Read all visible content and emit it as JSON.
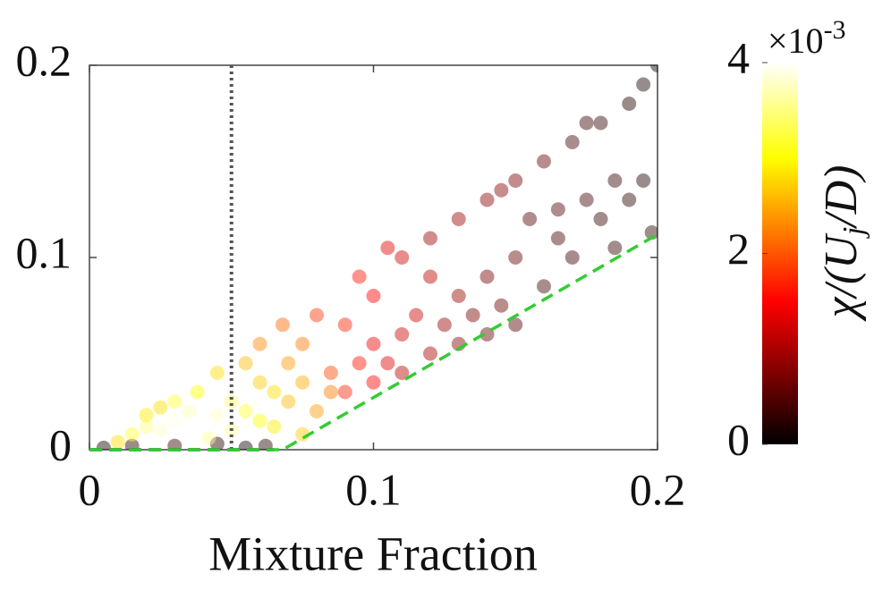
{
  "chart_data": {
    "type": "scatter",
    "xlabel": "Mixture Fraction",
    "xlim": [
      0,
      0.2
    ],
    "xticks": [
      0,
      0.1,
      0.2
    ],
    "ylim": [
      0,
      0.2
    ],
    "yticks": [
      0,
      0.1,
      0.2
    ],
    "colormap": "hot",
    "clim": [
      0,
      4
    ],
    "cticks": [
      0,
      2,
      4
    ],
    "colorbar_multiplier": {
      "base": "×10",
      "exponent": "-3"
    },
    "colorbar_label": {
      "main": "χ/(U",
      "sub": "j",
      "end": "/D)"
    },
    "point_opacity": 0.45,
    "lines": [
      {
        "x": [
          0.05,
          0.05
        ],
        "y": [
          0,
          0.2
        ],
        "color": "#555555",
        "dash": "dotted"
      },
      {
        "x": [
          0,
          0.065
        ],
        "y": [
          0,
          0
        ],
        "color": "#000000",
        "dash": "dashed"
      },
      {
        "x": [
          0,
          0.068,
          0.2
        ],
        "y": [
          0,
          0,
          0.112
        ],
        "color": "#33cc33",
        "dash": "dashed"
      }
    ],
    "series": [
      {
        "x": [
          0.005,
          0.015,
          0.03,
          0.045,
          0.055,
          0.062,
          0.01,
          0.015,
          0.02,
          0.025,
          0.03,
          0.035,
          0.04,
          0.045,
          0.05,
          0.03,
          0.038,
          0.042,
          0.05,
          0.055,
          0.06,
          0.02,
          0.025,
          0.045,
          0.055,
          0.06,
          0.065,
          0.07,
          0.07,
          0.075,
          0.06,
          0.068,
          0.075,
          0.08,
          0.085,
          0.065,
          0.075,
          0.08,
          0.085,
          0.09,
          0.095,
          0.09,
          0.1,
          0.1,
          0.105,
          0.1,
          0.095,
          0.11,
          0.11,
          0.115,
          0.12,
          0.12,
          0.11,
          0.105,
          0.125,
          0.13,
          0.13,
          0.13,
          0.135,
          0.14,
          0.14,
          0.14,
          0.145,
          0.15,
          0.15,
          0.15,
          0.155,
          0.16,
          0.16,
          0.165,
          0.165,
          0.17,
          0.17,
          0.175,
          0.175,
          0.18,
          0.18,
          0.185,
          0.185,
          0.19,
          0.19,
          0.195,
          0.195,
          0.198,
          0.2,
          0.12,
          0.145
        ],
        "y": [
          0.001,
          0.002,
          0.002,
          0.003,
          0.001,
          0.002,
          0.004,
          0.008,
          0.012,
          0.01,
          0.015,
          0.02,
          0.012,
          0.018,
          0.025,
          0.025,
          0.03,
          0.006,
          0.01,
          0.02,
          0.015,
          0.018,
          0.022,
          0.04,
          0.045,
          0.035,
          0.03,
          0.025,
          0.045,
          0.055,
          0.055,
          0.065,
          0.035,
          0.02,
          0.03,
          0.012,
          0.008,
          0.07,
          0.04,
          0.03,
          0.045,
          0.065,
          0.035,
          0.055,
          0.045,
          0.08,
          0.09,
          0.06,
          0.04,
          0.07,
          0.05,
          0.09,
          0.1,
          0.105,
          0.065,
          0.055,
          0.08,
          0.12,
          0.07,
          0.06,
          0.09,
          0.13,
          0.075,
          0.1,
          0.065,
          0.14,
          0.12,
          0.085,
          0.15,
          0.11,
          0.125,
          0.1,
          0.16,
          0.17,
          0.13,
          0.12,
          0.17,
          0.14,
          0.105,
          0.18,
          0.13,
          0.19,
          0.14,
          0.113,
          0.2,
          0.11,
          0.135
        ],
        "c": [
          0.1,
          0.2,
          0.3,
          0.2,
          0.1,
          0.2,
          2.8,
          3.2,
          3.5,
          3.8,
          3.9,
          3.7,
          4.0,
          3.8,
          3.4,
          3.2,
          3.0,
          3.6,
          3.6,
          3.2,
          3.0,
          2.9,
          2.8,
          2.8,
          2.6,
          2.7,
          2.8,
          2.6,
          2.4,
          2.2,
          2.3,
          2.1,
          2.5,
          2.4,
          2.2,
          2.9,
          2.7,
          1.8,
          1.9,
          1.7,
          1.6,
          1.7,
          1.5,
          1.4,
          1.3,
          1.5,
          1.6,
          1.2,
          1.1,
          1.2,
          1.0,
          1.1,
          1.2,
          1.3,
          0.9,
          0.8,
          0.9,
          0.9,
          0.7,
          0.6,
          0.7,
          0.8,
          0.6,
          0.6,
          0.5,
          0.7,
          0.5,
          0.4,
          0.6,
          0.4,
          0.5,
          0.35,
          0.4,
          0.35,
          0.4,
          0.3,
          0.3,
          0.3,
          0.3,
          0.2,
          0.25,
          0.15,
          0.2,
          0.25,
          0.05,
          0.9,
          0.8
        ]
      }
    ]
  }
}
